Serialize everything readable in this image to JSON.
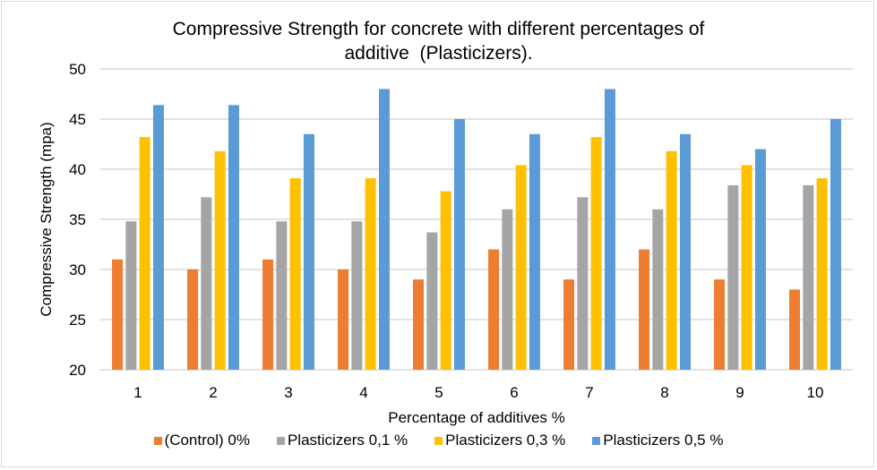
{
  "chart_data": {
    "type": "bar",
    "title_lines": [
      "Compressive Strength for concrete with different percentages of",
      "additive  (Plasticizers)."
    ],
    "xlabel": "Percentage of additives %",
    "ylabel": "Compressive Strength (mpa)",
    "ylim": [
      20,
      50
    ],
    "yticks": [
      20,
      25,
      30,
      35,
      40,
      45,
      50
    ],
    "grid": true,
    "legend_position": "bottom",
    "categories": [
      "1",
      "2",
      "3",
      "4",
      "5",
      "6",
      "7",
      "8",
      "9",
      "10"
    ],
    "series": [
      {
        "name": "(Control) 0%",
        "color": "#ed7d31",
        "values": [
          31,
          30,
          31,
          30,
          29,
          32,
          29,
          32,
          29,
          28
        ]
      },
      {
        "name": "Plasticizers 0,1 %",
        "color": "#a5a5a5",
        "values": [
          34.8,
          37.2,
          34.8,
          34.8,
          33.7,
          36,
          37.2,
          36,
          38.4,
          38.4
        ]
      },
      {
        "name": "Plasticizers 0,3 %",
        "color": "#ffc000",
        "values": [
          43.2,
          41.8,
          39.1,
          39.1,
          37.8,
          40.4,
          43.2,
          41.8,
          40.4,
          39.1
        ]
      },
      {
        "name": "Plasticizers 0,5 %",
        "color": "#5b9bd5",
        "values": [
          46.4,
          46.4,
          43.5,
          48,
          45,
          43.5,
          48,
          43.5,
          42,
          45
        ]
      }
    ]
  }
}
